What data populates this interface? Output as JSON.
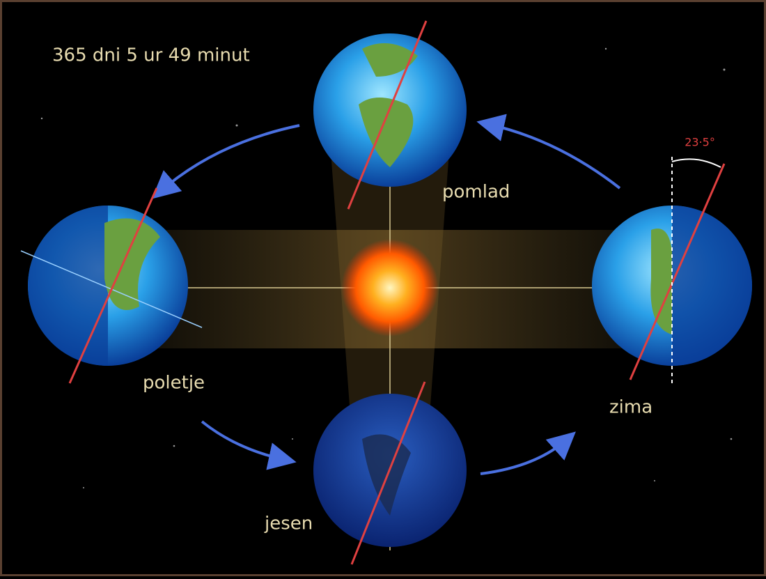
{
  "title": "365 dni 5 ur 49 minut",
  "tilt_label": "23·5°",
  "nodes": [
    {
      "label": "pomlad"
    },
    {
      "label": "poletje"
    },
    {
      "label": "zima"
    },
    {
      "label": "jesen"
    }
  ]
}
